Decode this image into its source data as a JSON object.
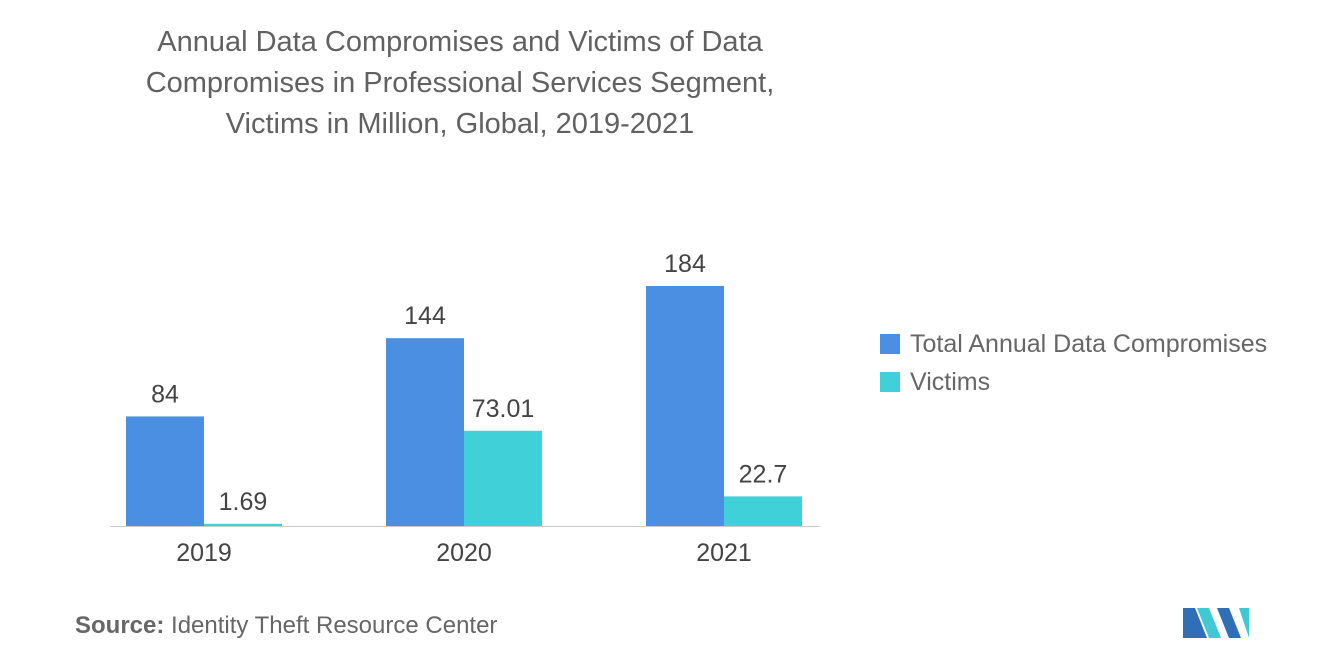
{
  "chart_data": {
    "type": "bar",
    "title_lines": [
      "Annual Data Compromises and Victims of Data",
      "Compromises in Professional Services Segment,",
      "Victims in Million, Global, 2019-2021"
    ],
    "categories": [
      "2019",
      "2020",
      "2021"
    ],
    "series": [
      {
        "name": "Total Annual Data Compromises",
        "values": [
          84,
          144,
          184
        ],
        "labels": [
          "84",
          "144",
          "184"
        ],
        "color": "#4A8FE2"
      },
      {
        "name": "Victims",
        "values": [
          1.69,
          73.01,
          22.7
        ],
        "labels": [
          "1.69",
          "73.01",
          "22.7"
        ],
        "color": "#40D0D8"
      }
    ],
    "ylim": [
      0,
      184
    ],
    "grid": false,
    "legend_position": "right"
  },
  "source": {
    "label": "Source:",
    "text": "Identity Theft Resource Center"
  },
  "colors": {
    "axis_line": "#cccccc",
    "tick_text": "#444444"
  }
}
